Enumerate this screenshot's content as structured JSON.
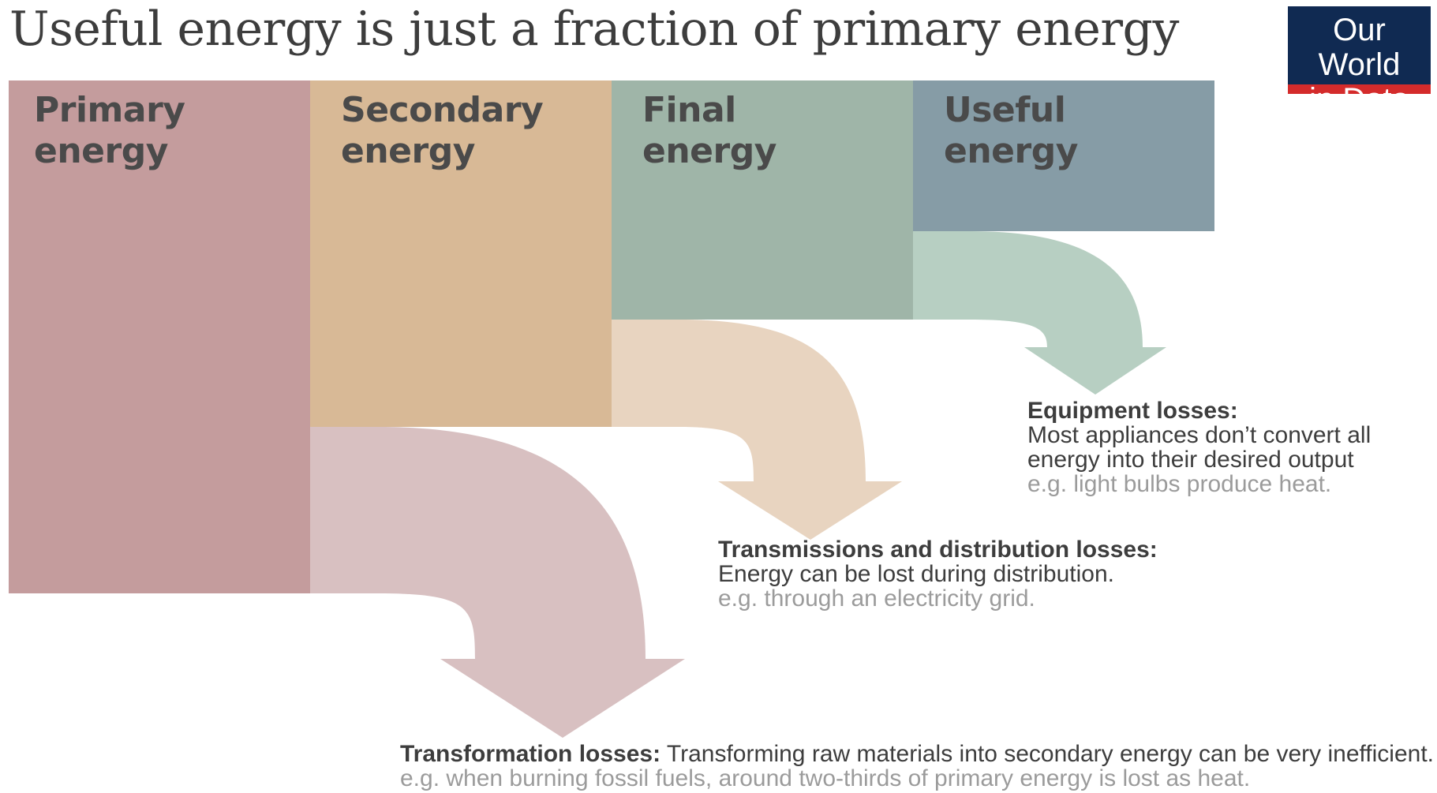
{
  "title": "Useful energy is just a fraction of primary energy",
  "logo": {
    "line1": "Our World",
    "line2": "in Data",
    "bg_color": "#102a52",
    "stripe_color": "#d42b2b"
  },
  "stages": [
    {
      "line1": "Primary",
      "line2": "energy",
      "color": "#c49c9d"
    },
    {
      "line1": "Secondary",
      "line2": "energy",
      "color": "#d8b996"
    },
    {
      "line1": "Final",
      "line2": "energy",
      "color": "#9fb5a8"
    },
    {
      "line1": "Useful",
      "line2": "energy",
      "color": "#869ca6"
    }
  ],
  "losses": {
    "transformation": {
      "heading": "Transformation losses:",
      "description": "Transforming raw materials into secondary energy can be very inefficient.",
      "example": "e.g. when burning fossil fuels, around two-thirds of primary energy is lost as heat.",
      "color": "#d8c0c1"
    },
    "transmission": {
      "heading": "Transmissions and distribution losses:",
      "description": "Energy can be lost during distribution.",
      "example": "e.g. through an electricity grid.",
      "color": "#e8d4c0"
    },
    "equipment": {
      "heading": "Equipment losses:",
      "description_line1": "Most appliances don’t convert all",
      "description_line2": "energy into their desired output",
      "example": "e.g. light bulbs produce heat.",
      "color": "#b7cfc2"
    }
  }
}
